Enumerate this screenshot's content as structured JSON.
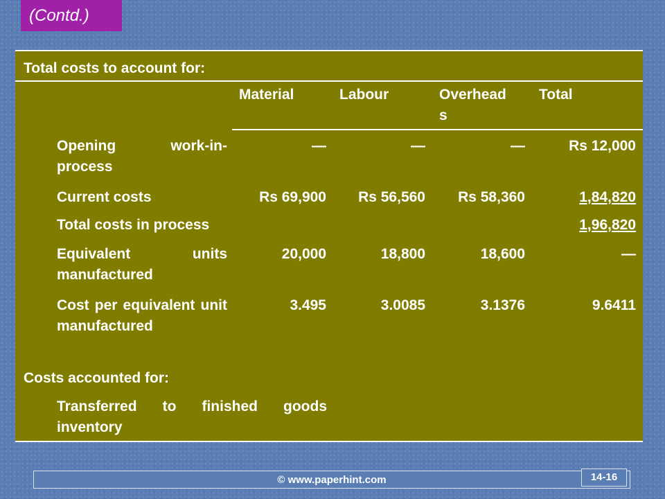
{
  "badge": "(Contd.)",
  "table": {
    "section1_title": "Total costs to account for:",
    "headers": {
      "material": "Material",
      "labour": "Labour",
      "overhead": "Overhead\ns",
      "total": "Total"
    },
    "rows": [
      {
        "label": "Opening work-in-process",
        "material": "—",
        "labour": "—",
        "overhead": "—",
        "total": "Rs 12,000"
      },
      {
        "label": "Current costs",
        "material": "Rs 69,900",
        "labour": "Rs 56,560",
        "overhead": "Rs 58,360",
        "total": "1,84,820"
      },
      {
        "label": "Total costs in process",
        "total": "1,96,820"
      },
      {
        "label": "Equivalent units manufactured",
        "material": "20,000",
        "labour": "18,800",
        "overhead": "18,600",
        "total": "—"
      },
      {
        "label": "Cost per equivalent unit manufactured",
        "material": "3.495",
        "labour": "3.0085",
        "overhead": "3.1376",
        "total": "9.6411"
      }
    ],
    "section2_title": "Costs accounted for:",
    "transferred_label": "Transferred to finished goods inventory"
  },
  "footer": {
    "url": "© www.paperhint.com",
    "page": "14-16"
  }
}
